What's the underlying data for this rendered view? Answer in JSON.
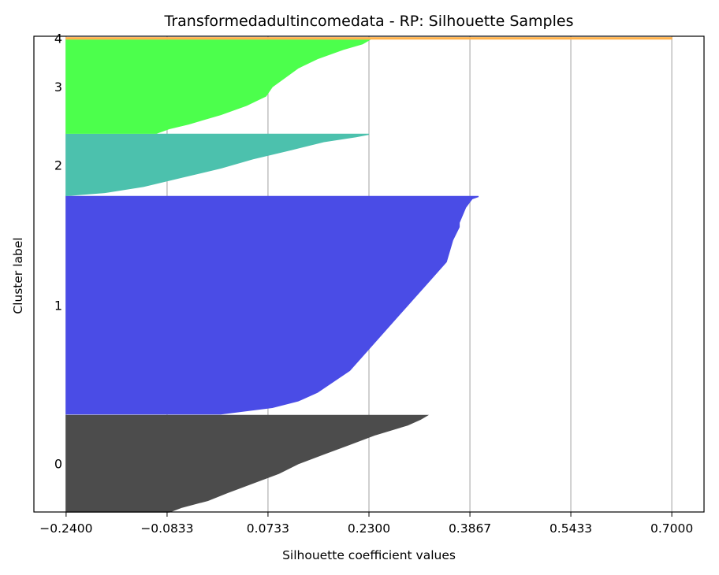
{
  "chart_data": {
    "type": "area",
    "title": "Transformedadultincomedata - RP: Silhouette Samples",
    "xlabel": "Silhouette coefficient values",
    "ylabel": "Cluster label",
    "xlim": [
      -0.29,
      0.75
    ],
    "ylim": [
      0,
      1000
    ],
    "x_ticks": [
      -0.24,
      -0.0833,
      0.0733,
      0.23,
      0.3867,
      0.5433,
      0.7
    ],
    "x_tick_labels": [
      "−0.2400",
      "−0.0833",
      "0.0733",
      "0.2300",
      "0.3867",
      "0.5433",
      "0.7000"
    ],
    "grid": "vertical",
    "clusters": [
      {
        "label": "0",
        "color": "#4c4c4c",
        "y_range": [
          0,
          203
        ],
        "profile": [
          [
            0,
            -0.08
          ],
          [
            0.05,
            -0.06
          ],
          [
            0.12,
            -0.02
          ],
          [
            0.2,
            0.01
          ],
          [
            0.3,
            0.05
          ],
          [
            0.4,
            0.09
          ],
          [
            0.5,
            0.12
          ],
          [
            0.6,
            0.16
          ],
          [
            0.7,
            0.2
          ],
          [
            0.8,
            0.24
          ],
          [
            0.9,
            0.29
          ],
          [
            0.96,
            0.31
          ],
          [
            1.0,
            0.32
          ]
        ]
      },
      {
        "label": "1",
        "color": "#4a4ce6",
        "y_range": [
          206,
          663
        ],
        "profile": [
          [
            0,
            0.0
          ],
          [
            0.03,
            0.08
          ],
          [
            0.06,
            0.12
          ],
          [
            0.1,
            0.15
          ],
          [
            0.2,
            0.2
          ],
          [
            0.3,
            0.23
          ],
          [
            0.4,
            0.26
          ],
          [
            0.5,
            0.29
          ],
          [
            0.6,
            0.32
          ],
          [
            0.7,
            0.35
          ],
          [
            0.8,
            0.36
          ],
          [
            0.86,
            0.37
          ],
          [
            0.88,
            0.37
          ],
          [
            0.95,
            0.38
          ],
          [
            0.99,
            0.39
          ],
          [
            1.0,
            0.4
          ]
        ]
      },
      {
        "label": "2",
        "color": "#4cc1ad",
        "y_range": [
          665,
          794
        ],
        "profile": [
          [
            0,
            -0.24
          ],
          [
            0.05,
            -0.18
          ],
          [
            0.15,
            -0.12
          ],
          [
            0.3,
            -0.06
          ],
          [
            0.45,
            0.0
          ],
          [
            0.6,
            0.05
          ],
          [
            0.75,
            0.11
          ],
          [
            0.88,
            0.16
          ],
          [
            0.96,
            0.21
          ],
          [
            1.0,
            0.23
          ]
        ]
      },
      {
        "label": "3",
        "color": "#4cff4c",
        "y_range": [
          796,
          992
        ],
        "profile": [
          [
            0,
            -0.1
          ],
          [
            0.05,
            -0.08
          ],
          [
            0.1,
            -0.05
          ],
          [
            0.2,
            0.0
          ],
          [
            0.3,
            0.04
          ],
          [
            0.4,
            0.07
          ],
          [
            0.5,
            0.08
          ],
          [
            0.6,
            0.1
          ],
          [
            0.7,
            0.12
          ],
          [
            0.8,
            0.15
          ],
          [
            0.9,
            0.19
          ],
          [
            0.96,
            0.22
          ],
          [
            1.0,
            0.23
          ]
        ]
      },
      {
        "label": "4",
        "color": "#ffb24c",
        "y_range": [
          994,
          997
        ],
        "profile": [
          [
            0,
            0.7
          ],
          [
            1,
            0.7
          ]
        ]
      }
    ]
  }
}
